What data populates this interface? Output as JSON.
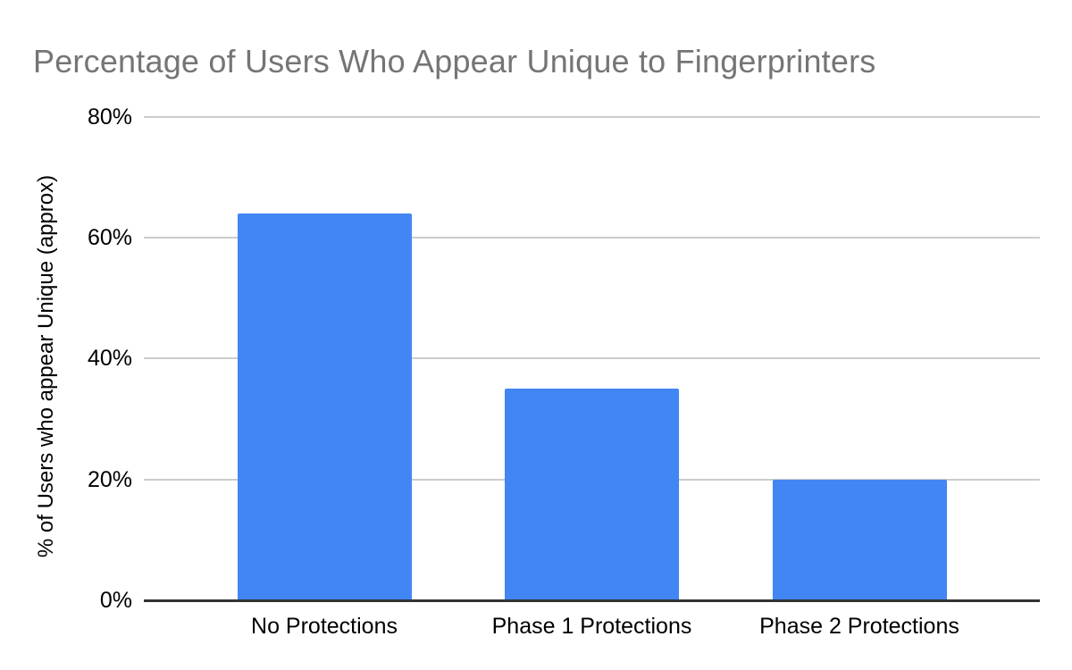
{
  "chart_data": {
    "type": "bar",
    "title": "Percentage of Users Who Appear Unique to Fingerprinters",
    "xlabel": "",
    "ylabel": "% of Users who appear Unique (approx)",
    "categories": [
      "No Protections",
      "Phase 1 Protections",
      "Phase 2 Protections"
    ],
    "values": [
      64,
      35,
      20
    ],
    "unit": "%",
    "ylim": [
      0,
      80
    ],
    "yticks": [
      0,
      20,
      40,
      60,
      80
    ],
    "ytick_labels": [
      "0%",
      "20%",
      "40%",
      "60%",
      "80%"
    ],
    "grid": true,
    "legend": "none",
    "colors": {
      "bar": "#4285F4",
      "title_text": "#757575",
      "axis_text": "#000000",
      "gridline": "#cccccc",
      "axis_line": "#333333",
      "background": "#ffffff"
    }
  }
}
